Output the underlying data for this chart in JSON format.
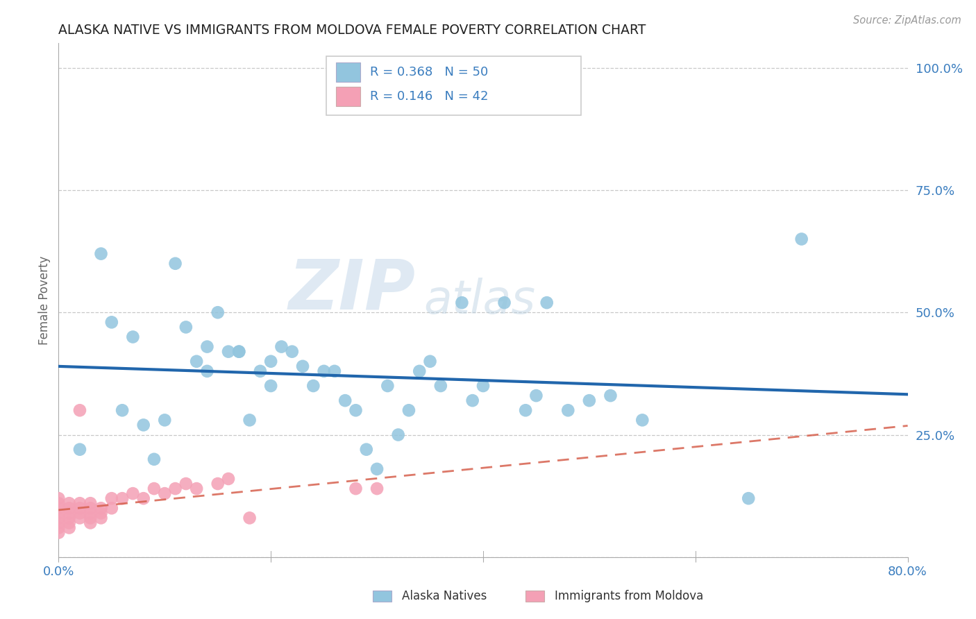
{
  "title": "ALASKA NATIVE VS IMMIGRANTS FROM MOLDOVA FEMALE POVERTY CORRELATION CHART",
  "source": "Source: ZipAtlas.com",
  "ylabel": "Female Poverty",
  "watermark": "ZIPatlas",
  "xlim": [
    0.0,
    0.8
  ],
  "ylim": [
    0.0,
    1.05
  ],
  "xticks": [
    0.0,
    0.2,
    0.4,
    0.6,
    0.8
  ],
  "xticklabels": [
    "0.0%",
    "",
    "",
    "",
    "80.0%"
  ],
  "yticks": [
    0.0,
    0.25,
    0.5,
    0.75,
    1.0
  ],
  "yticklabels": [
    "",
    "25.0%",
    "50.0%",
    "75.0%",
    "100.0%"
  ],
  "legend1_label": "Alaska Natives",
  "legend2_label": "Immigrants from Moldova",
  "R_alaska": 0.368,
  "N_alaska": 50,
  "R_moldova": 0.146,
  "N_moldova": 42,
  "alaska_color": "#92c5de",
  "alaska_edge_color": "#92c5de",
  "moldova_color": "#f4a0b5",
  "moldova_edge_color": "#f4a0b5",
  "alaska_line_color": "#2166ac",
  "moldova_line_color": "#d6604d",
  "background_color": "#ffffff",
  "grid_color": "#c8c8c8",
  "alaska_x": [
    0.02,
    0.04,
    0.05,
    0.06,
    0.07,
    0.08,
    0.09,
    0.1,
    0.11,
    0.12,
    0.13,
    0.14,
    0.14,
    0.15,
    0.16,
    0.17,
    0.17,
    0.18,
    0.19,
    0.2,
    0.2,
    0.21,
    0.22,
    0.23,
    0.24,
    0.25,
    0.26,
    0.27,
    0.28,
    0.29,
    0.3,
    0.31,
    0.32,
    0.33,
    0.34,
    0.35,
    0.36,
    0.38,
    0.39,
    0.4,
    0.42,
    0.44,
    0.45,
    0.46,
    0.48,
    0.5,
    0.52,
    0.55,
    0.65,
    0.7
  ],
  "alaska_y": [
    0.22,
    0.62,
    0.48,
    0.3,
    0.45,
    0.27,
    0.2,
    0.28,
    0.6,
    0.47,
    0.4,
    0.43,
    0.38,
    0.5,
    0.42,
    0.42,
    0.42,
    0.28,
    0.38,
    0.4,
    0.35,
    0.43,
    0.42,
    0.39,
    0.35,
    0.38,
    0.38,
    0.32,
    0.3,
    0.22,
    0.18,
    0.35,
    0.25,
    0.3,
    0.38,
    0.4,
    0.35,
    0.52,
    0.32,
    0.35,
    0.52,
    0.3,
    0.33,
    0.52,
    0.3,
    0.32,
    0.33,
    0.28,
    0.12,
    0.65
  ],
  "moldova_x": [
    0.0,
    0.0,
    0.0,
    0.0,
    0.0,
    0.0,
    0.0,
    0.0,
    0.01,
    0.01,
    0.01,
    0.01,
    0.01,
    0.01,
    0.02,
    0.02,
    0.02,
    0.02,
    0.02,
    0.03,
    0.03,
    0.03,
    0.03,
    0.03,
    0.04,
    0.04,
    0.04,
    0.05,
    0.05,
    0.06,
    0.07,
    0.08,
    0.09,
    0.1,
    0.11,
    0.12,
    0.13,
    0.15,
    0.16,
    0.18,
    0.28,
    0.3
  ],
  "moldova_y": [
    0.05,
    0.06,
    0.07,
    0.08,
    0.09,
    0.1,
    0.11,
    0.12,
    0.06,
    0.07,
    0.08,
    0.09,
    0.1,
    0.11,
    0.08,
    0.09,
    0.1,
    0.11,
    0.3,
    0.07,
    0.08,
    0.09,
    0.1,
    0.11,
    0.08,
    0.09,
    0.1,
    0.1,
    0.12,
    0.12,
    0.13,
    0.12,
    0.14,
    0.13,
    0.14,
    0.15,
    0.14,
    0.15,
    0.16,
    0.08,
    0.14,
    0.14
  ]
}
